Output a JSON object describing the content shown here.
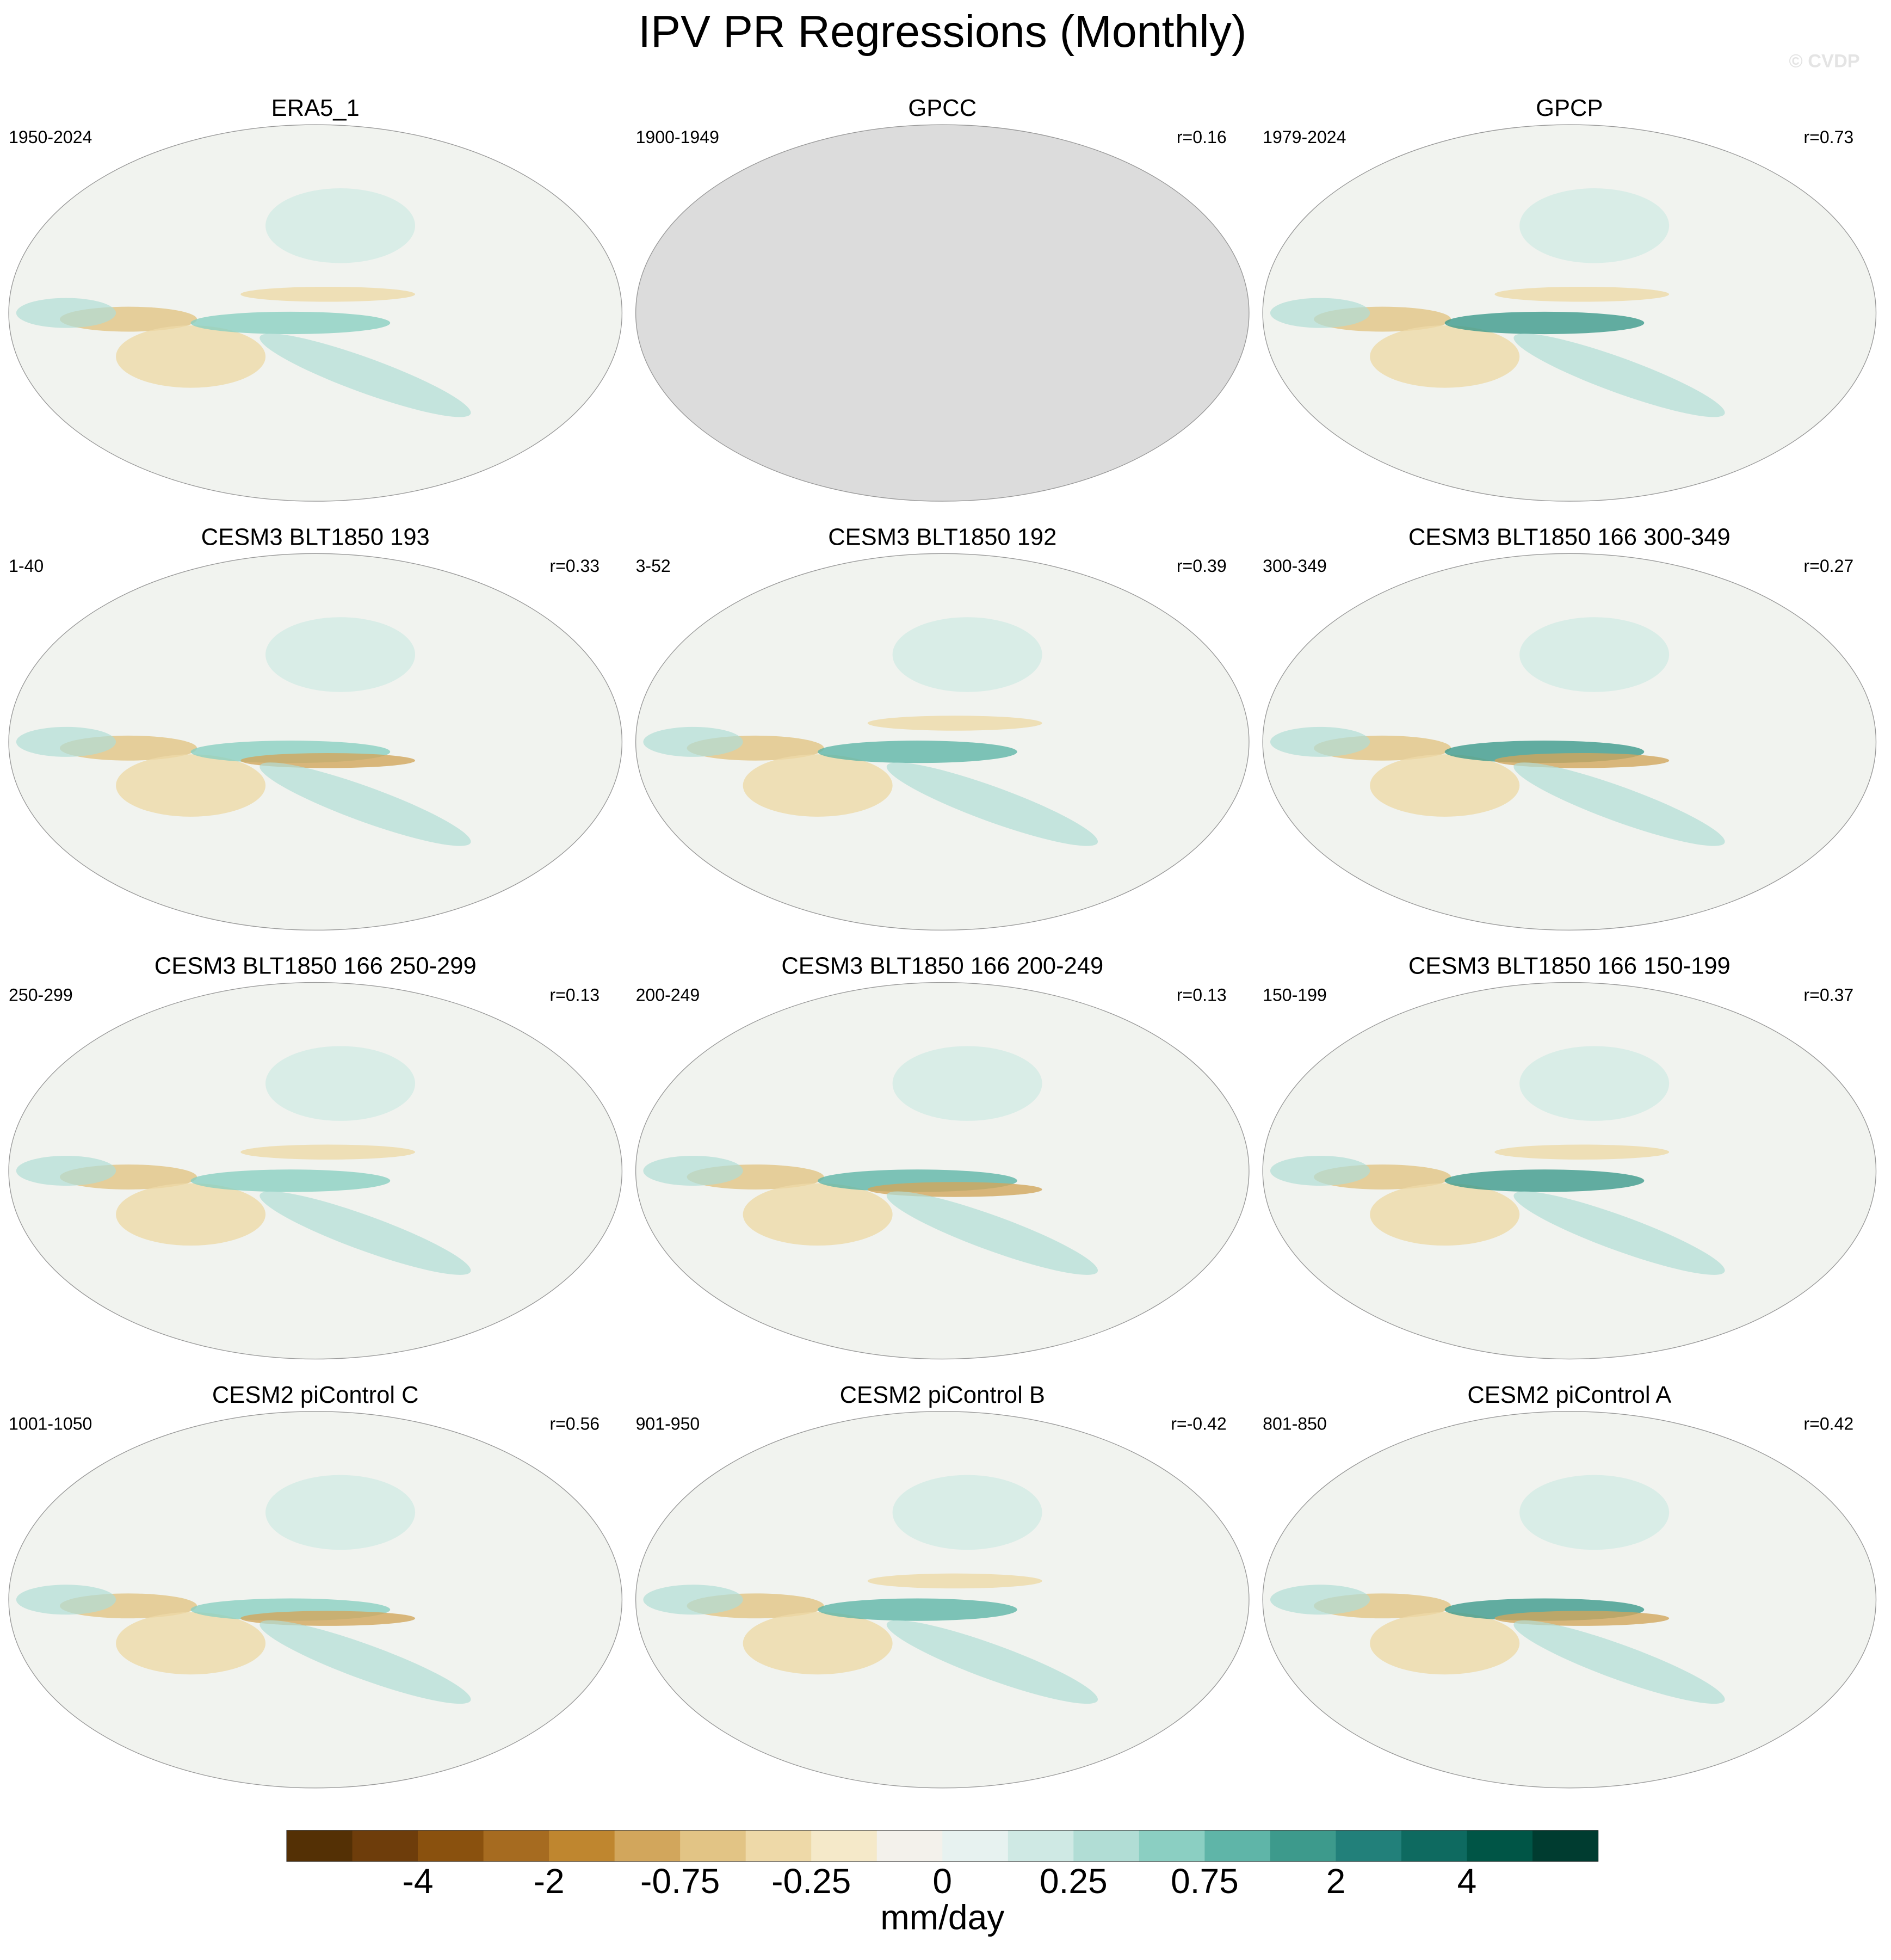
{
  "title": "IPV PR Regressions (Monthly)",
  "watermark": "© CVDP",
  "panels": [
    {
      "title": "ERA5_1",
      "period": "1950-2024"
    },
    {
      "title": "GPCC",
      "period": "1900-1949",
      "r": "r=0.16",
      "fill": "#dcdcdc"
    },
    {
      "title": "GPCP",
      "period": "1979-2024",
      "r": "r=0.73"
    },
    {
      "title": "CESM3 BLT1850 193",
      "period": "1-40",
      "r": "r=0.33"
    },
    {
      "title": "CESM3 BLT1850 192",
      "period": "3-52",
      "r": "r=0.39"
    },
    {
      "title": "CESM3 BLT1850 166 300-349",
      "period": "300-349",
      "r": "r=0.27"
    },
    {
      "title": "CESM3 BLT1850 166 250-299",
      "period": "250-299",
      "r": "r=0.13"
    },
    {
      "title": "CESM3 BLT1850 166 200-249",
      "period": "200-249",
      "r": "r=0.13"
    },
    {
      "title": "CESM3 BLT1850 166 150-199",
      "period": "150-199",
      "r": "r=0.37"
    },
    {
      "title": "CESM2 piControl C",
      "period": "1001-1050",
      "r": "r=0.56"
    },
    {
      "title": "CESM2 piControl B",
      "period": "901-950",
      "r": "r=-0.42"
    },
    {
      "title": "CESM2 piControl A",
      "period": "801-850",
      "r": "r=0.42"
    }
  ],
  "colorbar": {
    "colors": [
      "#543005",
      "#6e3d0b",
      "#8a510e",
      "#a66b20",
      "#bf862f",
      "#d2a65c",
      "#e2c485",
      "#eed9a8",
      "#f5e9c9",
      "#f3f1eb",
      "#e7f2f0",
      "#cfe9e4",
      "#b1ddd5",
      "#8bcfc2",
      "#5fb5a8",
      "#3d9a8c",
      "#22807a",
      "#0e6a60",
      "#005546",
      "#003c30"
    ],
    "ticks": [
      -4,
      -2,
      -0.75,
      -0.25,
      0,
      0.25,
      0.75,
      2,
      4
    ],
    "unit": "mm/day"
  }
}
